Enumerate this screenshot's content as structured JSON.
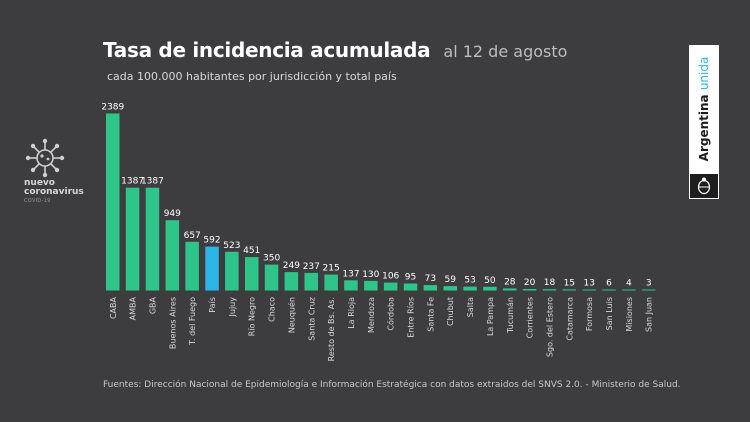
{
  "header": {
    "title": "Tasa de incidencia acumulada",
    "date": "al 12 de agosto",
    "subtitle": "cada 100.000 habitantes por jurisdicción y total país"
  },
  "logo": {
    "line1": "nuevo",
    "line2": "coronavirus",
    "line3": "COVID-19",
    "icon": "virus-icon"
  },
  "brand": {
    "text_main": "Argentina",
    "text_accent": "unida",
    "seal_icon": "national-seal-icon"
  },
  "footnote": "Fuentes: Dirección Nacional de Epidemiología e Información Estratégica con datos extraidos del SNVS 2.0. - Ministerio de Salud.",
  "colors": {
    "background": "#3d3d40",
    "bar": "#2fc48a",
    "highlight": "#2db5e8"
  },
  "chart_data": {
    "type": "bar",
    "title": "Tasa de incidencia acumulada",
    "subtitle": "cada 100.000 habitantes por jurisdicción y total país",
    "categories": [
      "CABA",
      "AMBA",
      "GBA",
      "Buenos Aires",
      "T. del Fuego",
      "País",
      "Jujuy",
      "Río Negro",
      "Chaco",
      "Neuquén",
      "Santa Cruz",
      "Resto de Bs. As.",
      "La Rioja",
      "Mendoza",
      "Córdoba",
      "Entre Ríos",
      "Santa Fe",
      "Chubut",
      "Salta",
      "La Pampa",
      "Tucumán",
      "Corrientes",
      "Sgo. del Estero",
      "Catamarca",
      "Formosa",
      "San Luis",
      "Misiones",
      "San Juan"
    ],
    "values": [
      2389,
      1387,
      1387,
      949,
      657,
      592,
      523,
      451,
      350,
      249,
      237,
      215,
      137,
      130,
      106,
      95,
      73,
      59,
      53,
      50,
      28,
      20,
      18,
      15,
      13,
      6,
      4,
      3
    ],
    "value_labels": [
      "2389",
      "1387",
      "1387",
      "949",
      "657",
      "592",
      "523",
      "451",
      "350",
      "249",
      "237",
      "215",
      "137",
      "130",
      "106",
      "95",
      "73",
      "59",
      "53",
      "50",
      "28",
      "20",
      "18",
      "15",
      "13",
      "6",
      "4",
      "3"
    ],
    "highlighted": [
      "País"
    ],
    "ylim": [
      0,
      2389
    ],
    "grid": false,
    "legend": "none"
  }
}
